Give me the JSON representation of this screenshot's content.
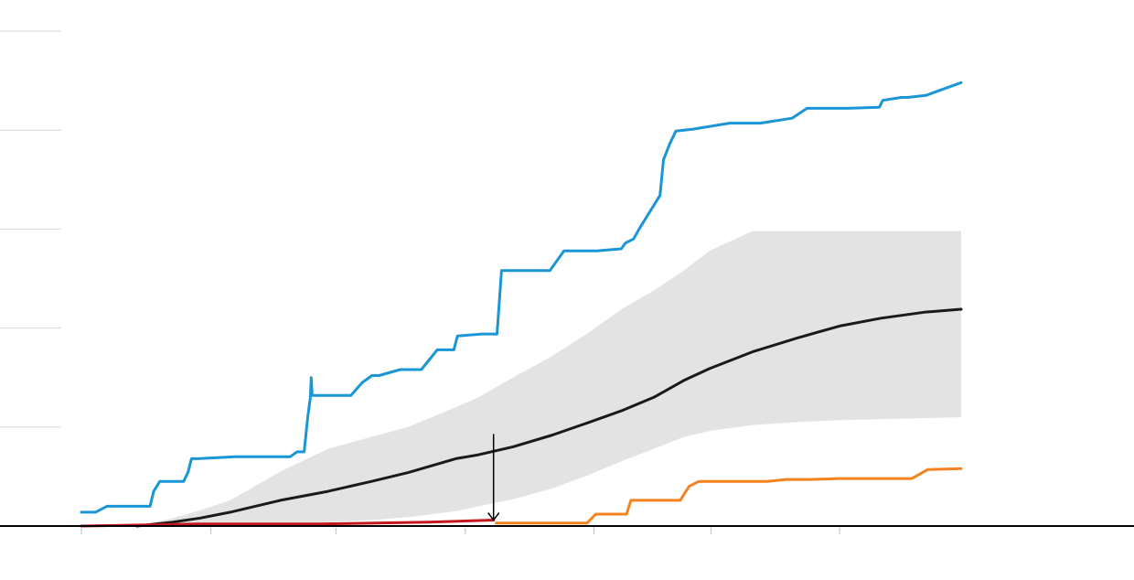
{
  "colors": {
    "series_a": "#1a95d6",
    "series_b": "#f5821f",
    "series_c": "#c4161c",
    "median": "#1a1a1a",
    "band": "#e3e3e3",
    "gridline": "#d6d6d6",
    "baseline": "#000000",
    "tick": "#bdbdbd",
    "arrow": "#000000"
  },
  "chart_data": {
    "type": "line",
    "title": "",
    "xlabel": "",
    "ylabel": "",
    "xlim": [
      0,
      1.0
    ],
    "ylim": [
      0,
      5
    ],
    "grid": true,
    "y_gridlines": [
      1,
      2,
      3,
      4,
      5
    ],
    "x_ticks": [
      0,
      0.147,
      0.289,
      0.436,
      0.582,
      0.715,
      0.861
    ],
    "series": [
      {
        "color_key": "series_a",
        "x": [
          0,
          0.016,
          0.029,
          0.078,
          0.082,
          0.089,
          0.116,
          0.121,
          0.125,
          0.132,
          0.174,
          0.237,
          0.245,
          0.253,
          0.257,
          0.26,
          0.261,
          0.262,
          0.275,
          0.306,
          0.319,
          0.33,
          0.338,
          0.362,
          0.386,
          0.404,
          0.423,
          0.427,
          0.455,
          0.466,
          0.472,
          0.477,
          0.532,
          0.548,
          0.585,
          0.613,
          0.618,
          0.627,
          0.634,
          0.657,
          0.661,
          0.668,
          0.675,
          0.695,
          0.736,
          0.771,
          0.807,
          0.824,
          0.85,
          0.87,
          0.906,
          0.91,
          0.931,
          0.938,
          0.959,
          0.999
        ],
        "values": [
          0.14,
          0.14,
          0.2,
          0.2,
          0.35,
          0.45,
          0.45,
          0.54,
          0.68,
          0.68,
          0.7,
          0.7,
          0.75,
          0.75,
          1.1,
          1.3,
          1.5,
          1.32,
          1.32,
          1.32,
          1.45,
          1.52,
          1.52,
          1.58,
          1.58,
          1.78,
          1.78,
          1.92,
          1.94,
          1.94,
          1.94,
          2.58,
          2.58,
          2.78,
          2.78,
          2.8,
          2.86,
          2.9,
          3.01,
          3.34,
          3.7,
          3.86,
          3.99,
          4.01,
          4.07,
          4.07,
          4.12,
          4.22,
          4.22,
          4.22,
          4.23,
          4.3,
          4.33,
          4.33,
          4.35,
          4.48
        ]
      },
      {
        "color_key": "series_c",
        "x": [
          0,
          0.131,
          0.27,
          0.394,
          0.468
        ],
        "values": [
          0.0,
          0.02,
          0.02,
          0.04,
          0.06
        ]
      },
      {
        "color_key": "series_b",
        "x": [
          0.471,
          0.574,
          0.584,
          0.619,
          0.624,
          0.68,
          0.69,
          0.701,
          0.779,
          0.8,
          0.829,
          0.861,
          0.943,
          0.961,
          0.999
        ],
        "values": [
          0.03,
          0.03,
          0.12,
          0.12,
          0.26,
          0.26,
          0.4,
          0.45,
          0.45,
          0.47,
          0.47,
          0.48,
          0.48,
          0.57,
          0.58
        ]
      }
    ],
    "median": {
      "color_key": "median",
      "x": [
        0.063,
        0.104,
        0.135,
        0.169,
        0.226,
        0.28,
        0.329,
        0.371,
        0.425,
        0.451,
        0.49,
        0.535,
        0.577,
        0.615,
        0.65,
        0.684,
        0.713,
        0.762,
        0.813,
        0.861,
        0.908,
        0.957,
        0.999
      ],
      "values": [
        0.0,
        0.04,
        0.08,
        0.14,
        0.26,
        0.35,
        0.45,
        0.54,
        0.68,
        0.72,
        0.8,
        0.92,
        1.05,
        1.17,
        1.3,
        1.47,
        1.59,
        1.76,
        1.9,
        2.02,
        2.1,
        2.16,
        2.19
      ]
    },
    "band": {
      "color_key": "band",
      "x": [
        0.063,
        0.104,
        0.135,
        0.169,
        0.226,
        0.28,
        0.329,
        0.371,
        0.425,
        0.451,
        0.49,
        0.535,
        0.577,
        0.615,
        0.65,
        0.684,
        0.713,
        0.762,
        0.813,
        0.861,
        0.908,
        0.957,
        0.999
      ],
      "upper": [
        0.0,
        0.08,
        0.16,
        0.26,
        0.55,
        0.78,
        0.9,
        1.0,
        1.2,
        1.3,
        1.5,
        1.72,
        1.96,
        2.2,
        2.38,
        2.58,
        2.78,
        2.98,
        2.98,
        2.98,
        2.98,
        2.98,
        2.98
      ],
      "lower": [
        0.0,
        0.0,
        0.0,
        0.01,
        0.02,
        0.04,
        0.06,
        0.09,
        0.15,
        0.2,
        0.27,
        0.38,
        0.52,
        0.66,
        0.78,
        0.9,
        0.96,
        1.02,
        1.05,
        1.07,
        1.08,
        1.09,
        1.1
      ]
    },
    "annotation": {
      "type": "arrow",
      "x": 0.468,
      "y_from": 0.93,
      "y_to": 0.06
    }
  }
}
